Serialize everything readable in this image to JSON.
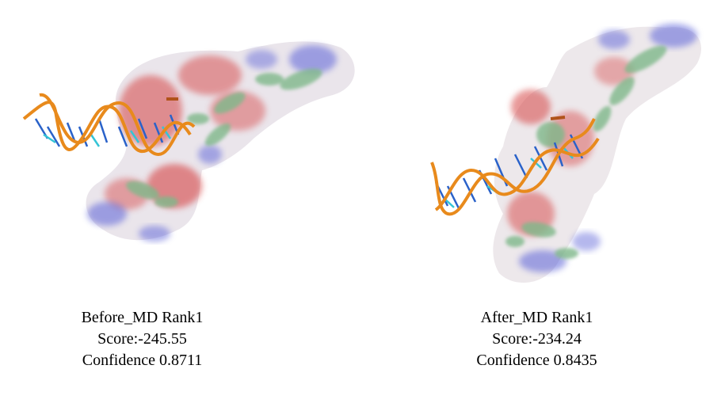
{
  "panels": [
    {
      "title": "Before_MD Rank1",
      "score": "Score:-245.55",
      "confidence": "Confidence 0.8711"
    },
    {
      "title": "After_MD Rank1",
      "score": "Score:-234.24",
      "confidence": "Confidence 0.8435"
    }
  ],
  "colors": {
    "background": "#ffffff",
    "surface_negative": "#e24a4a",
    "surface_positive": "#5b62d8",
    "surface_neutral": "#eeeeee",
    "cartoon_green": "#7fb88a",
    "dna_backbone": "#e88a1c",
    "dna_bases_blue": "#2a62c9",
    "dna_bases_cyan": "#35c4d6"
  }
}
